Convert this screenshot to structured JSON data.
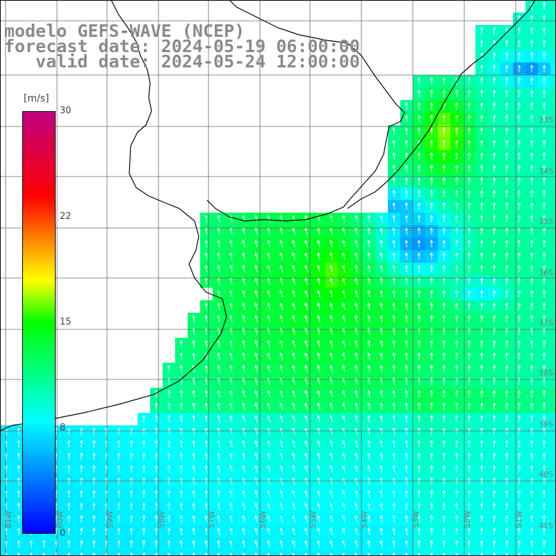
{
  "title": {
    "line1": "modelo GEFS-WAVE (NCEP)",
    "line2": "forecast date: 2024-05-19 06:00:00",
    "line3": "   valid date: 2024-05-24 12:00:00"
  },
  "colorbar": {
    "unit": "[m/s]",
    "ticks": [
      "30",
      "22",
      "15",
      "8",
      "0"
    ],
    "range": [
      0,
      30
    ],
    "colors": [
      "#0000ff",
      "#00ffff",
      "#00ff00",
      "#ffff00",
      "#ff8000",
      "#ff0000",
      "#c00080"
    ]
  },
  "map": {
    "lon_labels": [
      "61W",
      "60W",
      "59W",
      "58W",
      "57W",
      "56W",
      "55W",
      "54W",
      "53W",
      "52W",
      "51W"
    ],
    "lat_labels": [
      "33S",
      "34S",
      "35S",
      "36S",
      "37S",
      "38S",
      "39S",
      "40S",
      "41S"
    ],
    "field": "wind speed with direction arrows",
    "coastline_color": "#000000",
    "grid_color": "#666666",
    "arrow_color": "#ffffff"
  }
}
